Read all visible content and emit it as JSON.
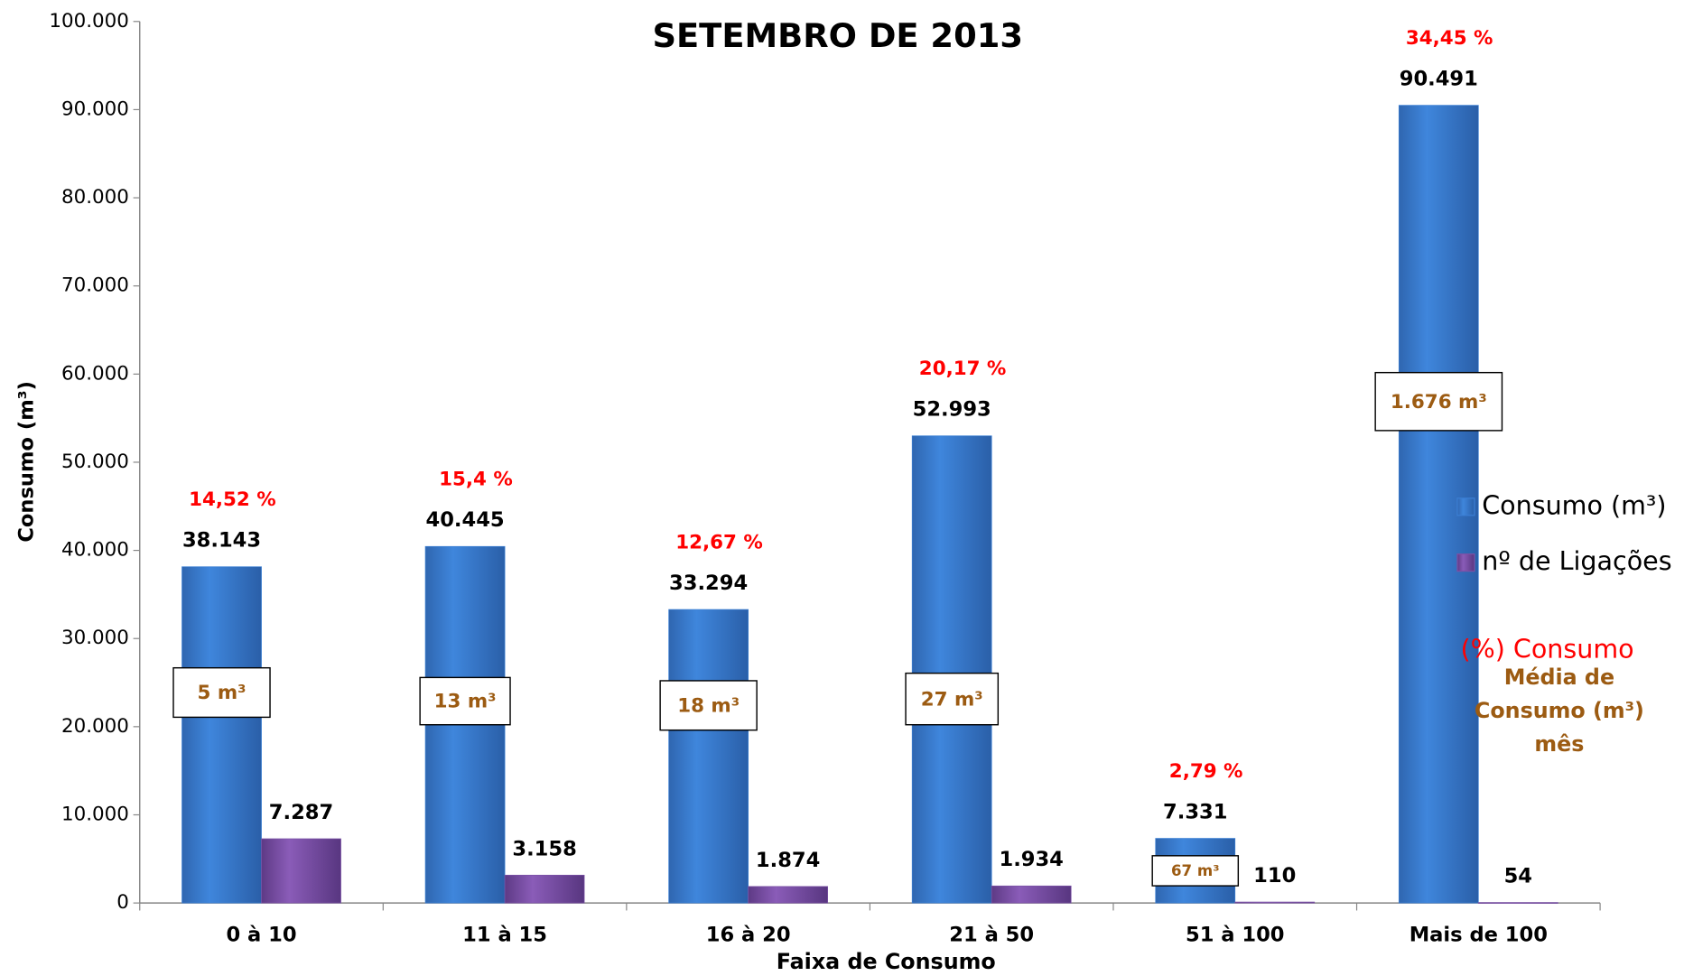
{
  "chart_data": {
    "type": "bar",
    "title": "SETEMBRO DE 2013",
    "y_label": "Consumo (m³)",
    "x_label": "Faixa de Consumo",
    "categories": [
      "0 à 10",
      "11 à 15",
      "16 à 20",
      "21 à 50",
      "51 à 100",
      "Mais de 100"
    ],
    "series": [
      {
        "name": "Consumo (m³)",
        "color": "#3b7fd4",
        "values": [
          38143,
          40445,
          33294,
          52993,
          7331,
          90491
        ],
        "value_labels": [
          "38.143",
          "40.445",
          "33.294",
          "52.993",
          "7.331",
          "90.491"
        ]
      },
      {
        "name": "nº de Ligações",
        "color": "#7b52a6",
        "values": [
          7287,
          3158,
          1874,
          1934,
          110,
          54
        ],
        "value_labels": [
          "7.287",
          "3.158",
          "1.874",
          "1.934",
          "110",
          "54"
        ]
      }
    ],
    "percent_consumo": {
      "name": "(%) Consumo",
      "color": "#ff0000",
      "values": [
        14.52,
        15.4,
        12.67,
        20.17,
        2.79,
        34.45
      ],
      "value_labels": [
        "14,52 %",
        "15,4 %",
        "12,67 %",
        "20,17 %",
        "2,79 %",
        "34,45 %"
      ]
    },
    "media_consumo": {
      "name": [
        "Média de",
        "Consumo (m³)",
        "mês"
      ],
      "color": "#9c5b12",
      "values": [
        5,
        13,
        18,
        27,
        67,
        1676
      ],
      "value_labels": [
        "5 m³",
        "13 m³",
        "18 m³",
        "27 m³",
        "67 m³",
        "1.676 m³"
      ]
    },
    "ylim": [
      0,
      100000
    ],
    "yticks": [
      0,
      {
        "value": 10000,
        "label": "10.000"
      },
      {
        "value": 20000,
        "label": "20.000"
      },
      {
        "value": 30000,
        "label": "30.000"
      },
      {
        "value": 40000,
        "label": "40.000"
      },
      {
        "value": 50000,
        "label": "50.000"
      },
      {
        "value": 60000,
        "label": "60.000"
      },
      {
        "value": 70000,
        "label": "70.000"
      },
      {
        "value": 80000,
        "label": "80.000"
      },
      {
        "value": 90000,
        "label": "90.000"
      },
      {
        "value": 100000,
        "label": "100.000"
      }
    ],
    "grid": false,
    "legend": "right"
  }
}
